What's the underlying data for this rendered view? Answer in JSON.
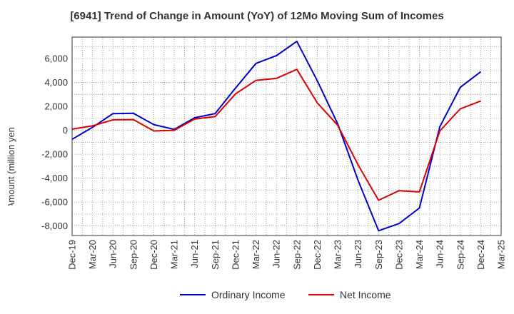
{
  "chart_data": {
    "type": "line",
    "title": "[6941]  Trend of Change in Amount (YoY) of 12Mo Moving Sum of Incomes",
    "xlabel": "",
    "ylabel": "Amount (million yen)",
    "ylim": [
      -8800,
      7800
    ],
    "yticks": [
      -8000,
      -6000,
      -4000,
      -2000,
      0,
      2000,
      4000,
      6000
    ],
    "ytick_labels": [
      "-8,000",
      "-6,000",
      "-4,000",
      "-2,000",
      "0",
      "2,000",
      "4,000",
      "6,000"
    ],
    "categories": [
      "Dec-19",
      "Mar-20",
      "Jun-20",
      "Sep-20",
      "Dec-20",
      "Mar-21",
      "Jun-21",
      "Sep-21",
      "Dec-21",
      "Mar-22",
      "Jun-22",
      "Sep-22",
      "Dec-22",
      "Mar-23",
      "Jun-23",
      "Sep-23",
      "Dec-23",
      "Mar-24",
      "Jun-24",
      "Sep-24",
      "Dec-24",
      "Mar-25"
    ],
    "grid": true,
    "legend_position": "bottom",
    "series": [
      {
        "name": "Ordinary Income",
        "color": "#0000cc",
        "values": [
          -750,
          250,
          1400,
          1420,
          480,
          80,
          1050,
          1400,
          3550,
          5600,
          6250,
          7450,
          4150,
          550,
          -4200,
          -8400,
          -7800,
          -6500,
          300,
          3600,
          4900,
          null
        ]
      },
      {
        "name": "Net Income",
        "color": "#dd0000",
        "values": [
          100,
          380,
          880,
          900,
          -50,
          0,
          950,
          1150,
          3050,
          4180,
          4350,
          5100,
          2300,
          430,
          -2900,
          -5850,
          -5050,
          -5150,
          -50,
          1800,
          2450,
          null
        ]
      }
    ]
  }
}
